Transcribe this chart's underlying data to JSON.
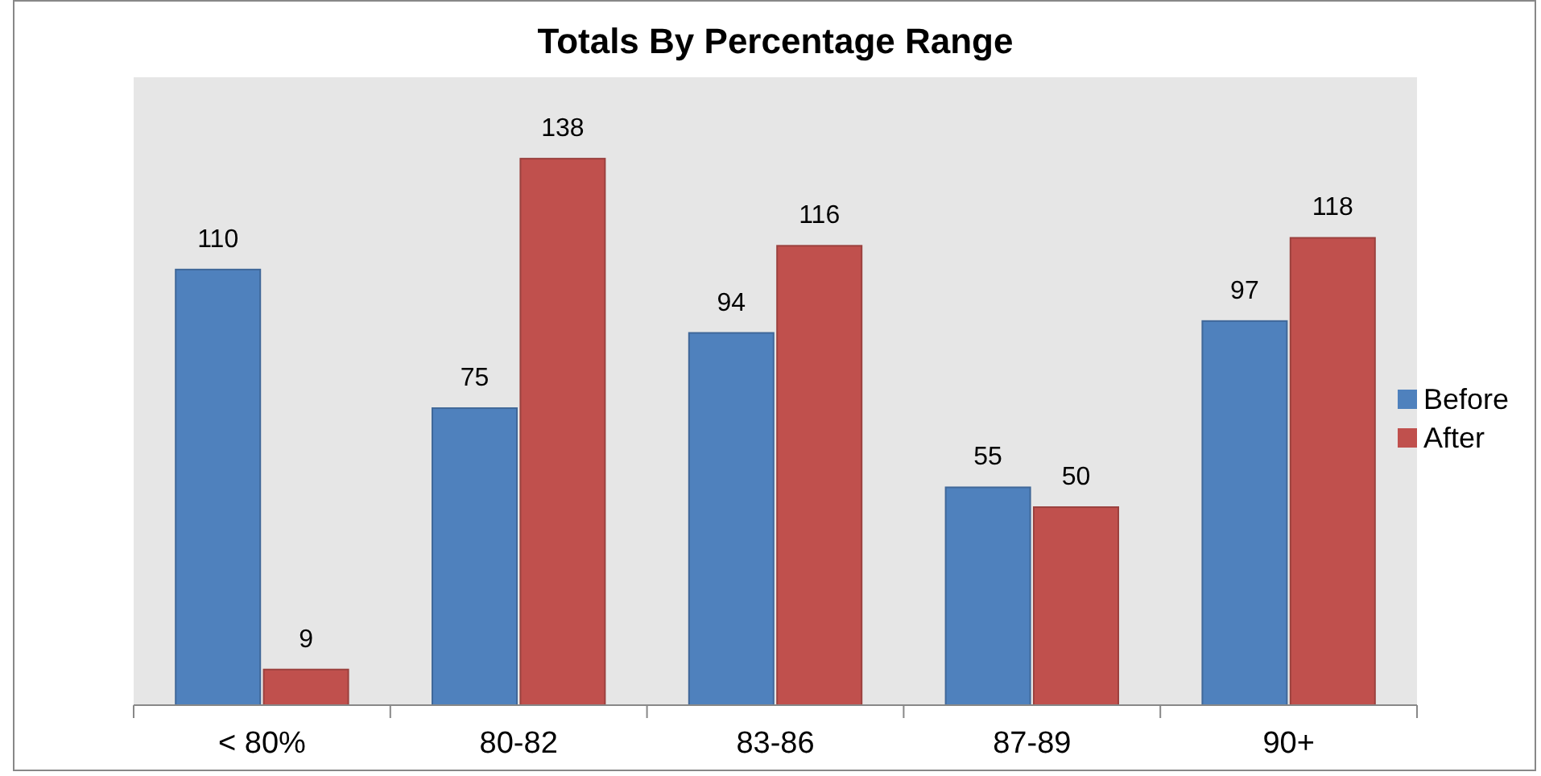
{
  "chart_data": {
    "type": "bar",
    "title": "Totals By Percentage Range",
    "categories": [
      "< 80%",
      "80-82",
      "83-86",
      "87-89",
      "90+"
    ],
    "series": [
      {
        "name": "Before",
        "color": "#4f81bd",
        "values": [
          110,
          75,
          94,
          55,
          97
        ]
      },
      {
        "name": "After",
        "color": "#c0504d",
        "values": [
          9,
          138,
          116,
          50,
          118
        ]
      }
    ],
    "data_labels": true,
    "legend": "right"
  }
}
